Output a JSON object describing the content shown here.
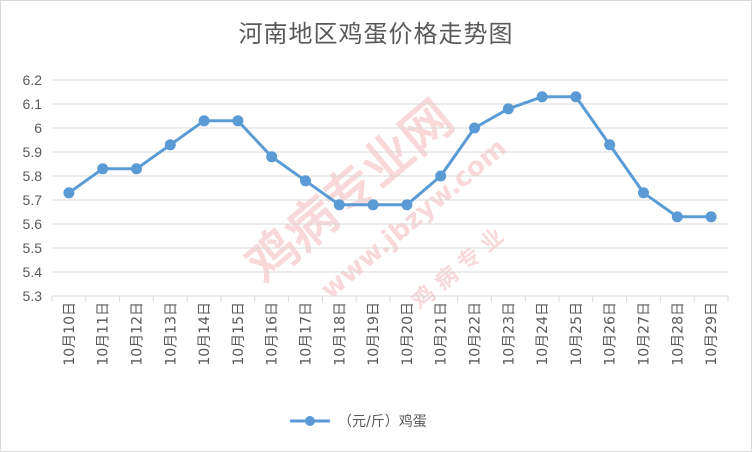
{
  "chart_data": {
    "type": "line",
    "title": "河南地区鸡蛋价格走势图",
    "categories": [
      "10月10日",
      "10月11日",
      "10月12日",
      "10月13日",
      "10月14日",
      "10月15日",
      "10月16日",
      "10月17日",
      "10月18日",
      "10月19日",
      "10月20日",
      "10月21日",
      "10月22日",
      "10月23日",
      "10月24日",
      "10月25日",
      "10月26日",
      "10月27日",
      "10月28日",
      "10月29日"
    ],
    "series": [
      {
        "name": "（元/斤）鸡蛋",
        "color": "#5b9bd5",
        "values": [
          5.73,
          5.83,
          5.83,
          5.93,
          6.03,
          6.03,
          5.88,
          5.78,
          5.68,
          5.68,
          5.68,
          5.8,
          6.0,
          6.08,
          6.13,
          6.13,
          5.93,
          5.73,
          5.63,
          5.63
        ]
      }
    ],
    "y_ticks": [
      "5.3",
      "5.4",
      "5.5",
      "5.6",
      "5.7",
      "5.8",
      "5.9",
      "6",
      "6.1",
      "6.2"
    ],
    "ylim": [
      5.3,
      6.2
    ],
    "grid": true,
    "legend_position": "bottom"
  },
  "watermark": {
    "text_main": "鸡病专业网",
    "text_url": "www.jbzyw.com",
    "text_sub": "鸡 病 专 业",
    "color": "#f4b9b9"
  }
}
